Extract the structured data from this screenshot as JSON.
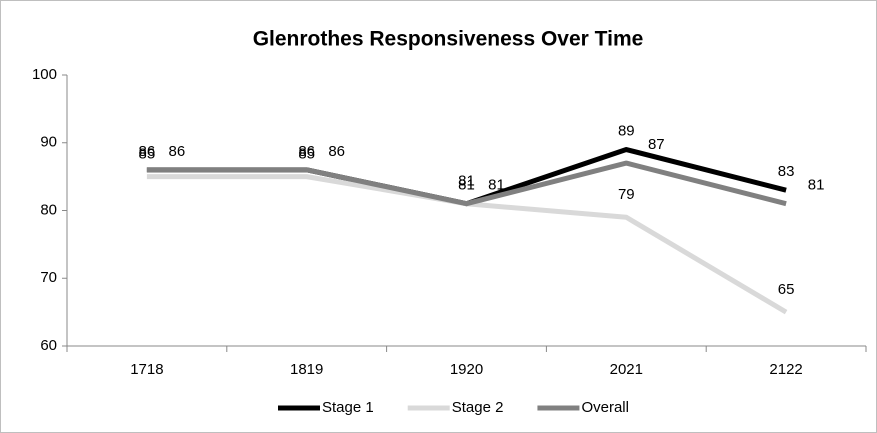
{
  "chart_data": {
    "type": "line",
    "title": "Glenrothes Responsiveness Over Time",
    "categories": [
      "1718",
      "1819",
      "1920",
      "2021",
      "2122"
    ],
    "series": [
      {
        "name": "Stage 1",
        "color": "#000000",
        "values": [
          86,
          86,
          81,
          89,
          83
        ]
      },
      {
        "name": "Stage 2",
        "color": "#d9d9d9",
        "values": [
          85,
          85,
          81,
          79,
          65
        ]
      },
      {
        "name": "Overall",
        "color": "#808080",
        "values": [
          86,
          86,
          81,
          87,
          81
        ]
      }
    ],
    "ylim": [
      60,
      100
    ],
    "yticks": [
      60,
      70,
      80,
      90,
      100
    ],
    "grid": false,
    "legend": "bottom"
  }
}
